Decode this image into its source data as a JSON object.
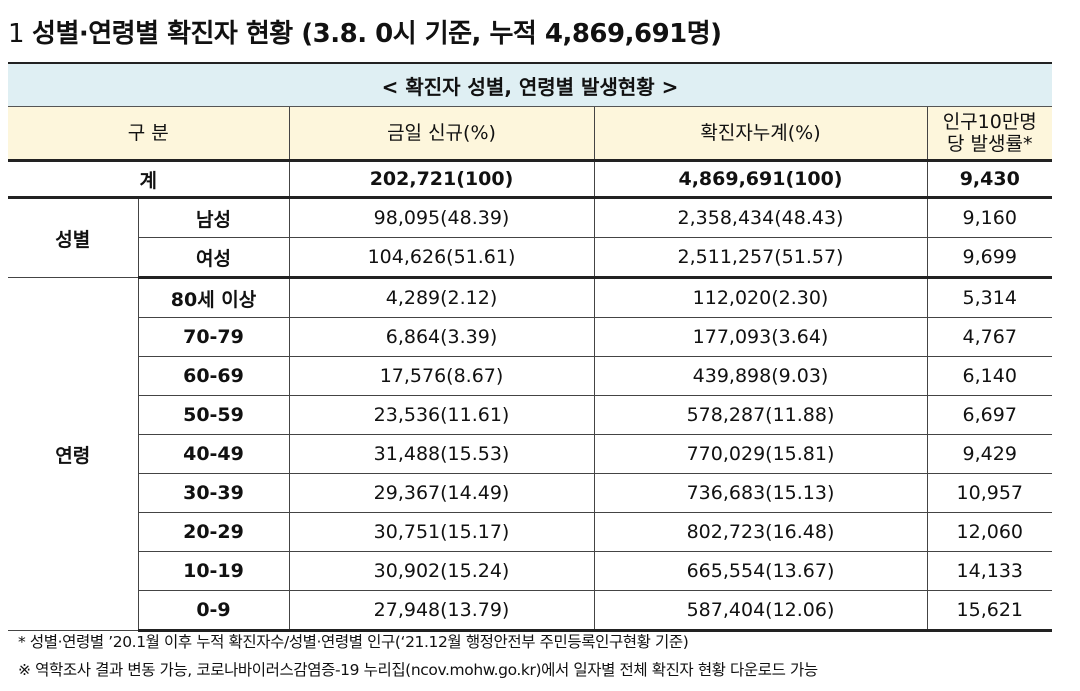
{
  "heading": {
    "number": "1",
    "title": "성별·연령별 확진자 현황 (3.8. 0시 기준, 누적 4,869,691명)"
  },
  "table": {
    "caption": "< 확진자 성별, 연령별 발생현황 >",
    "headers": [
      "구 분",
      "금일 신규(%)",
      "확진자누계(%)",
      "인구10만명당 발생률*"
    ],
    "total": {
      "label": "계",
      "new": "202,721(100)",
      "cumulative": "4,869,691(100)",
      "rate": "9,430"
    },
    "groups": [
      {
        "name": "성별",
        "rows": [
          {
            "label": "남성",
            "new": "98,095(48.39)",
            "cumulative": "2,358,434(48.43)",
            "rate": "9,160"
          },
          {
            "label": "여성",
            "new": "104,626(51.61)",
            "cumulative": "2,511,257(51.57)",
            "rate": "9,699"
          }
        ]
      },
      {
        "name": "연령",
        "rows": [
          {
            "label": "80세 이상",
            "new": "4,289(2.12)",
            "cumulative": "112,020(2.30)",
            "rate": "5,314"
          },
          {
            "label": "70-79",
            "new": "6,864(3.39)",
            "cumulative": "177,093(3.64)",
            "rate": "4,767"
          },
          {
            "label": "60-69",
            "new": "17,576(8.67)",
            "cumulative": "439,898(9.03)",
            "rate": "6,140"
          },
          {
            "label": "50-59",
            "new": "23,536(11.61)",
            "cumulative": "578,287(11.88)",
            "rate": "6,697"
          },
          {
            "label": "40-49",
            "new": "31,488(15.53)",
            "cumulative": "770,029(15.81)",
            "rate": "9,429"
          },
          {
            "label": "30-39",
            "new": "29,367(14.49)",
            "cumulative": "736,683(15.13)",
            "rate": "10,957"
          },
          {
            "label": "20-29",
            "new": "30,751(15.17)",
            "cumulative": "802,723(16.48)",
            "rate": "12,060"
          },
          {
            "label": "10-19",
            "new": "30,902(15.24)",
            "cumulative": "665,554(13.67)",
            "rate": "14,133"
          },
          {
            "label": "0-9",
            "new": "27,948(13.79)",
            "cumulative": "587,404(12.06)",
            "rate": "15,621"
          }
        ]
      }
    ]
  },
  "notes": [
    "* 성별·연령별 ’20.1월 이후 누적 확진자수/성별·연령별 인구(‘21.12월 행정안전부 주민등록인구현황 기준)",
    "※ 역학조사 결과 변동 가능, 코로나바이러스감염증-19 누리집(ncov.mohw.go.kr)에서 일자별 전체 확진자 현황 다운로드 가능"
  ]
}
